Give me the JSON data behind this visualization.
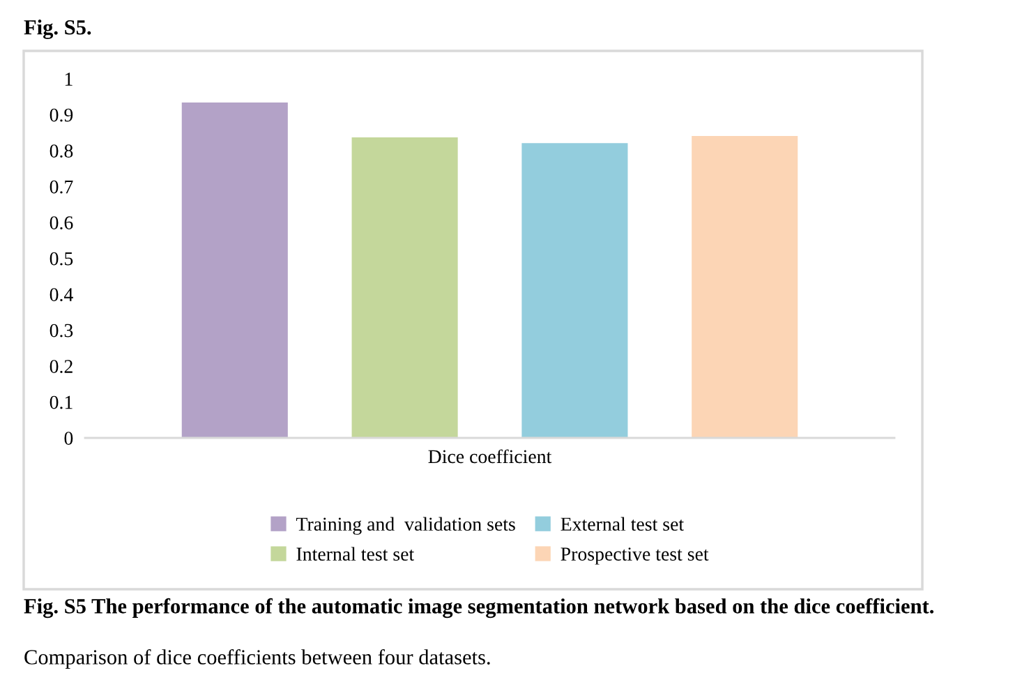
{
  "chart_data": {
    "type": "bar",
    "title": "Fig. S5.",
    "categories": [
      "Dice coefficient"
    ],
    "series": [
      {
        "name": "Training and  validation sets",
        "color": "#b3a2c7",
        "values": [
          0.934
        ]
      },
      {
        "name": "Internal test set",
        "color": "#c4d79b",
        "values": [
          0.837
        ]
      },
      {
        "name": "External test set",
        "color": "#93cddd",
        "values": [
          0.821
        ]
      },
      {
        "name": "Prospective test set",
        "color": "#fcd5b5",
        "values": [
          0.841
        ]
      }
    ],
    "ylim": [
      0,
      1
    ],
    "yticks": [
      0,
      0.1,
      0.2,
      0.3,
      0.4,
      0.5,
      0.6,
      0.7,
      0.8,
      0.9,
      1
    ],
    "grid": false,
    "legend": "bottom",
    "annotations": [
      "Fig. S5 The performance of the automatic image segmentation network based on the dice coefficient.",
      "Comparison of dice coefficients between four datasets."
    ]
  }
}
